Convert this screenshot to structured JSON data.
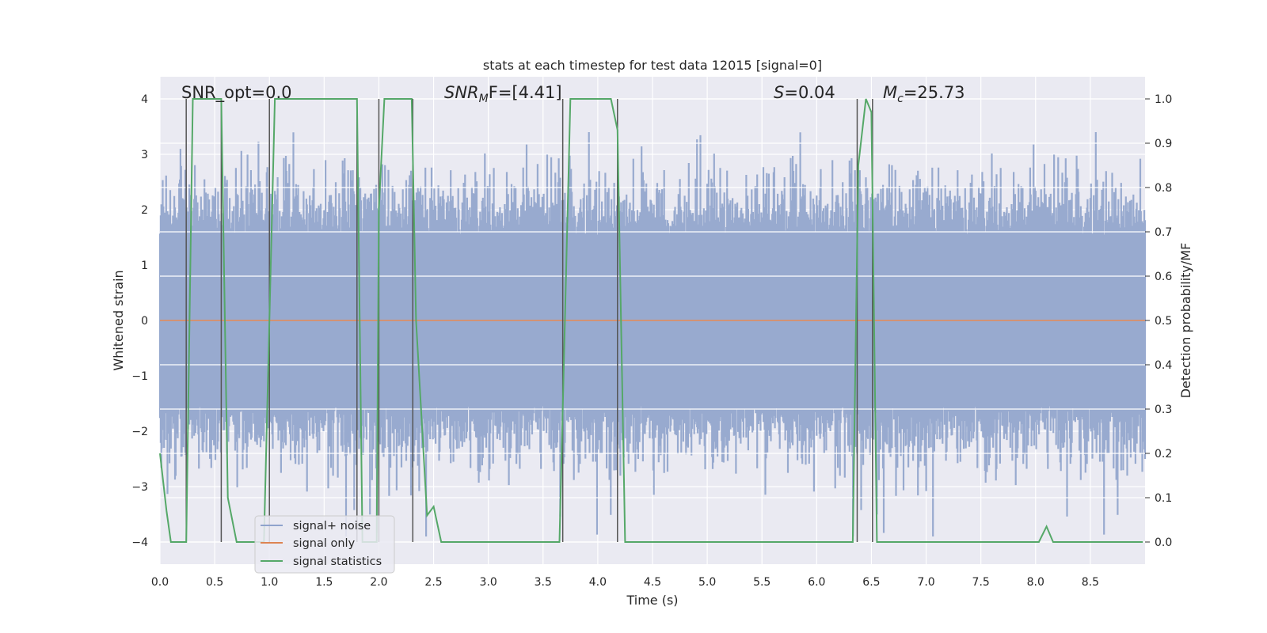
{
  "chart_data": {
    "type": "line",
    "title": "stats at each timestep for test data 12015 [signal=0]",
    "xlabel": "Time (s)",
    "ylabel": "Whitened strain",
    "y2label": "Detection probability/MF",
    "xlim": [
      0,
      9.0
    ],
    "ylim": [
      -4.4,
      4.4
    ],
    "y2lim": [
      -0.05,
      1.05
    ],
    "x_ticks": [
      "0.0",
      "0.5",
      "1.0",
      "1.5",
      "2.0",
      "2.5",
      "3.0",
      "3.5",
      "4.0",
      "4.5",
      "5.0",
      "5.5",
      "6.0",
      "6.5",
      "7.0",
      "7.5",
      "8.0",
      "8.5"
    ],
    "y_ticks": [
      "4",
      "3",
      "2",
      "1",
      "0",
      "−1",
      "−2",
      "−3",
      "−4"
    ],
    "y2_ticks": [
      "1.0",
      "0.9",
      "0.8",
      "0.7",
      "0.6",
      "0.5",
      "0.4",
      "0.3",
      "0.2",
      "0.1",
      "0.0"
    ],
    "annotations": {
      "snr_opt": "SNR_opt=0.0",
      "snr_mf_base": "SNR",
      "snr_mf_sub": "M",
      "snr_mf_rest": "F=[4.41]",
      "s_sym": "S",
      "s_val": "=0.04",
      "mc_sym": "M",
      "mc_sub": "c",
      "mc_val": "=25.73"
    },
    "legend": {
      "position": "lower-left",
      "entries": [
        "signal+ noise",
        "signal only",
        "signal statistics"
      ]
    },
    "noise_envelope": {
      "sigma": 0.8,
      "peak_max": 3.4,
      "peak_min": -3.9,
      "samples_per_second": 160
    },
    "signal_only": {
      "value": 0.0
    },
    "detection_lines_x": [
      0.24,
      0.56,
      1.0,
      1.8,
      2.0,
      2.31,
      3.68,
      4.18,
      6.37,
      6.51
    ],
    "series": [
      {
        "name": "signal statistics",
        "axis": "y2",
        "x": [
          0.0,
          0.06,
          0.1,
          0.24,
          0.3,
          0.56,
          0.62,
          0.7,
          0.95,
          1.0,
          1.05,
          1.8,
          1.85,
          1.98,
          2.0,
          2.05,
          2.3,
          2.34,
          2.44,
          2.5,
          2.57,
          3.65,
          3.75,
          4.12,
          4.18,
          4.25,
          6.33,
          6.38,
          6.45,
          6.5,
          6.55,
          8.03,
          8.1,
          8.16,
          8.5,
          8.98
        ],
        "values": [
          0.2,
          0.07,
          0.0,
          0.0,
          1.0,
          1.0,
          0.1,
          0.0,
          0.0,
          0.5,
          1.0,
          1.0,
          0.0,
          0.0,
          0.75,
          1.0,
          1.0,
          0.5,
          0.06,
          0.08,
          0.0,
          0.0,
          1.0,
          1.0,
          0.93,
          0.0,
          0.0,
          0.85,
          1.0,
          0.97,
          0.0,
          0.0,
          0.035,
          0.0,
          0.0,
          0.0
        ]
      }
    ]
  }
}
